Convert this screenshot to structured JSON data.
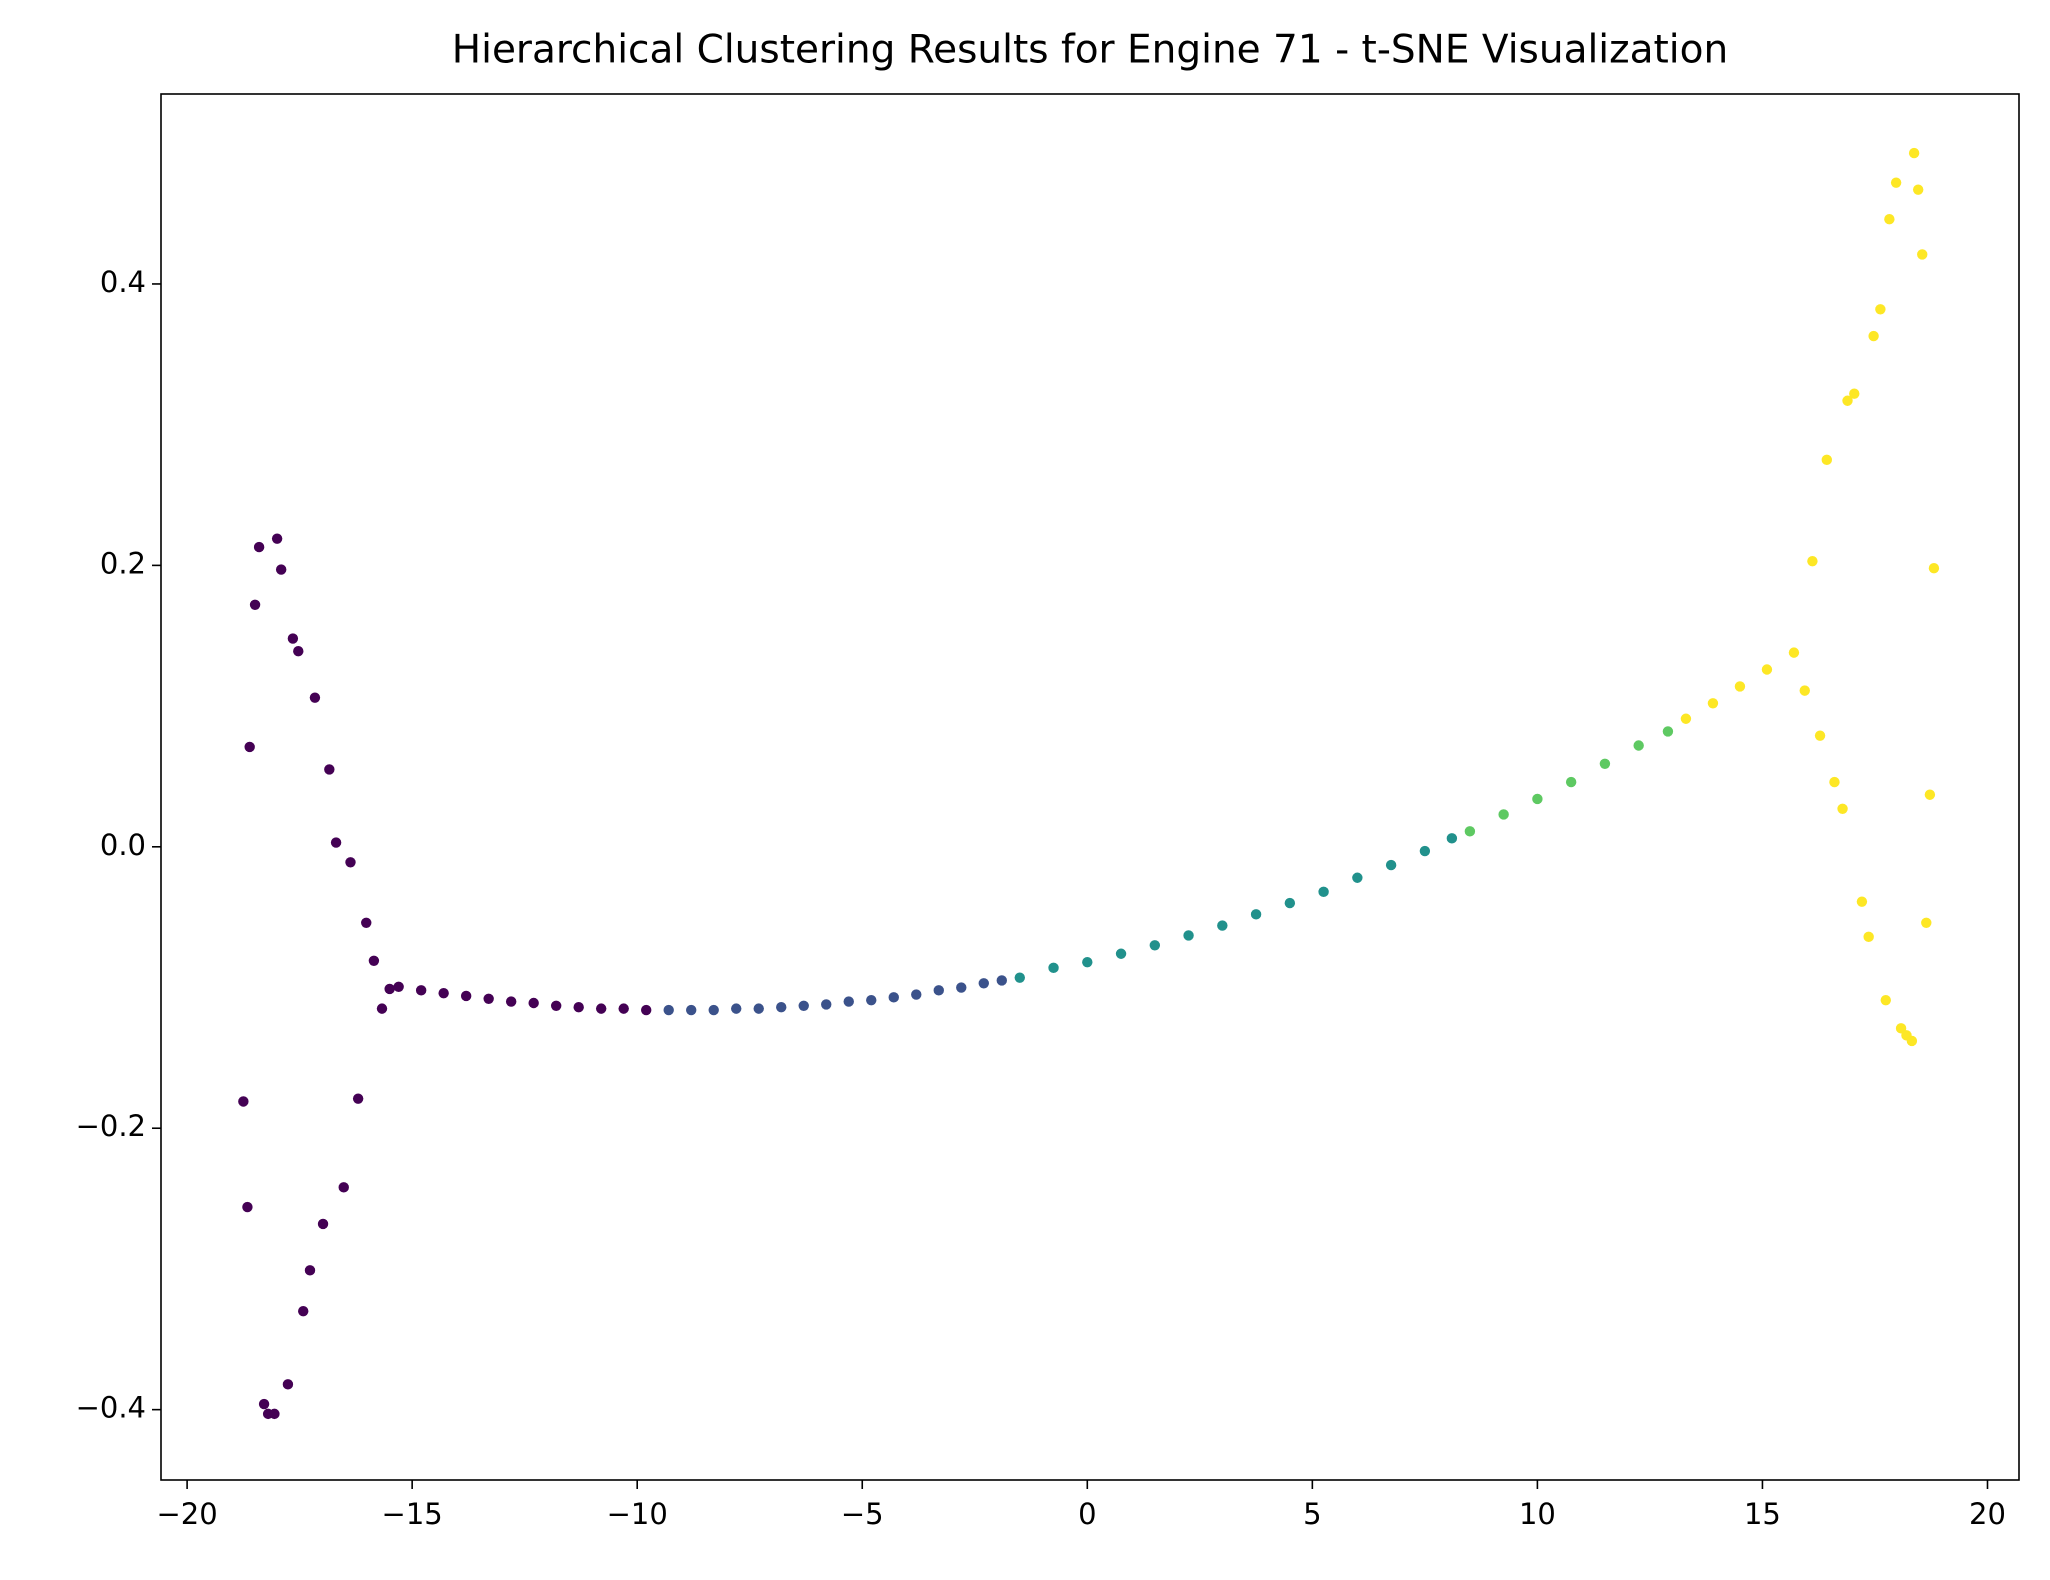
{
  "chart_data": {
    "type": "scatter",
    "title": "Hierarchical Clustering Results for Engine 71 - t-SNE Visualization",
    "xlim": [
      -20.58,
      20.7
    ],
    "ylim": [
      -0.45,
      0.535
    ],
    "xticks": [
      {
        "value": -20,
        "label": "−20"
      },
      {
        "value": -15,
        "label": "−15"
      },
      {
        "value": -10,
        "label": "−10"
      },
      {
        "value": -5,
        "label": "−5"
      },
      0,
      5,
      10,
      15,
      20
    ],
    "yticks": [
      {
        "value": -0.4,
        "label": "−0.4"
      },
      {
        "value": -0.2,
        "label": "−0.2"
      },
      {
        "value": 0,
        "label": "0.0"
      },
      0.2,
      0.4
    ],
    "series": [
      {
        "color": "#440154",
        "x": [
          -18.4,
          -18.0,
          -17.91,
          -18.49,
          -17.65,
          -17.53,
          -17.16,
          -18.61,
          -16.84,
          -16.69,
          -16.37,
          -16.02,
          -15.85,
          -15.67,
          -15.5,
          -18.75,
          -16.2,
          -18.66,
          -16.52,
          -16.98,
          -17.27,
          -17.42,
          -17.76,
          -18.29,
          -18.2,
          -18.06,
          -15.3,
          -14.8,
          -14.3,
          -13.8,
          -13.3,
          -12.8,
          -12.3,
          -11.8,
          -11.3,
          -10.8,
          -10.3,
          -9.8
        ],
        "values": [
          0.213,
          0.219,
          0.197,
          0.172,
          0.148,
          0.139,
          0.106,
          0.071,
          0.055,
          0.003,
          -0.011,
          -0.054,
          -0.081,
          -0.115,
          -0.101,
          -0.181,
          -0.179,
          -0.256,
          -0.242,
          -0.268,
          -0.301,
          -0.33,
          -0.382,
          -0.396,
          -0.403,
          -0.403,
          -0.0995,
          -0.102,
          -0.104,
          -0.106,
          -0.108,
          -0.11,
          -0.111,
          -0.113,
          -0.114,
          -0.115,
          -0.115,
          -0.116
        ]
      },
      {
        "color": "#3b528b",
        "x": [
          -9.3,
          -8.8,
          -8.3,
          -7.8,
          -7.3,
          -6.8,
          -6.3,
          -5.8,
          -5.3,
          -4.8,
          -4.3,
          -3.8,
          -3.3,
          -2.8,
          -2.3,
          -1.9
        ],
        "values": [
          -0.116,
          -0.116,
          -0.116,
          -0.115,
          -0.115,
          -0.114,
          -0.113,
          -0.112,
          -0.11,
          -0.109,
          -0.107,
          -0.105,
          -0.102,
          -0.1,
          -0.097,
          -0.095
        ]
      },
      {
        "color": "#21918c",
        "x": [
          -1.5,
          -0.75,
          0,
          0.75,
          1.5,
          2.25,
          3,
          3.75,
          4.5,
          5.25,
          6,
          6.75,
          7.5,
          8.1
        ],
        "values": [
          -0.093,
          -0.086,
          -0.082,
          -0.076,
          -0.07,
          -0.063,
          -0.056,
          -0.048,
          -0.04,
          -0.032,
          -0.022,
          -0.013,
          -0.003,
          0.006
        ]
      },
      {
        "color": "#5ec962",
        "x": [
          8.5,
          9.25,
          10,
          10.75,
          11.5,
          12.25,
          12.9
        ],
        "values": [
          0.011,
          0.023,
          0.034,
          0.046,
          0.059,
          0.072,
          0.082
        ]
      },
      {
        "color": "#fde725",
        "x": [
          18.37,
          17.97,
          18.46,
          17.82,
          18.55,
          17.62,
          17.47,
          17.04,
          16.89,
          16.43,
          16.11,
          18.81,
          15.94,
          16.28,
          16.6,
          16.78,
          18.72,
          17.21,
          17.36,
          18.64,
          17.74,
          18.08,
          18.2,
          18.32,
          13.3,
          13.9,
          14.5,
          15.1,
          15.7
        ],
        "values": [
          0.493,
          0.472,
          0.467,
          0.446,
          0.421,
          0.382,
          0.363,
          0.322,
          0.317,
          0.275,
          0.203,
          0.198,
          0.111,
          0.079,
          0.046,
          0.027,
          0.037,
          -0.039,
          -0.064,
          -0.054,
          -0.109,
          -0.129,
          -0.134,
          -0.138,
          0.091,
          0.102,
          0.114,
          0.126,
          0.138
        ]
      }
    ]
  }
}
